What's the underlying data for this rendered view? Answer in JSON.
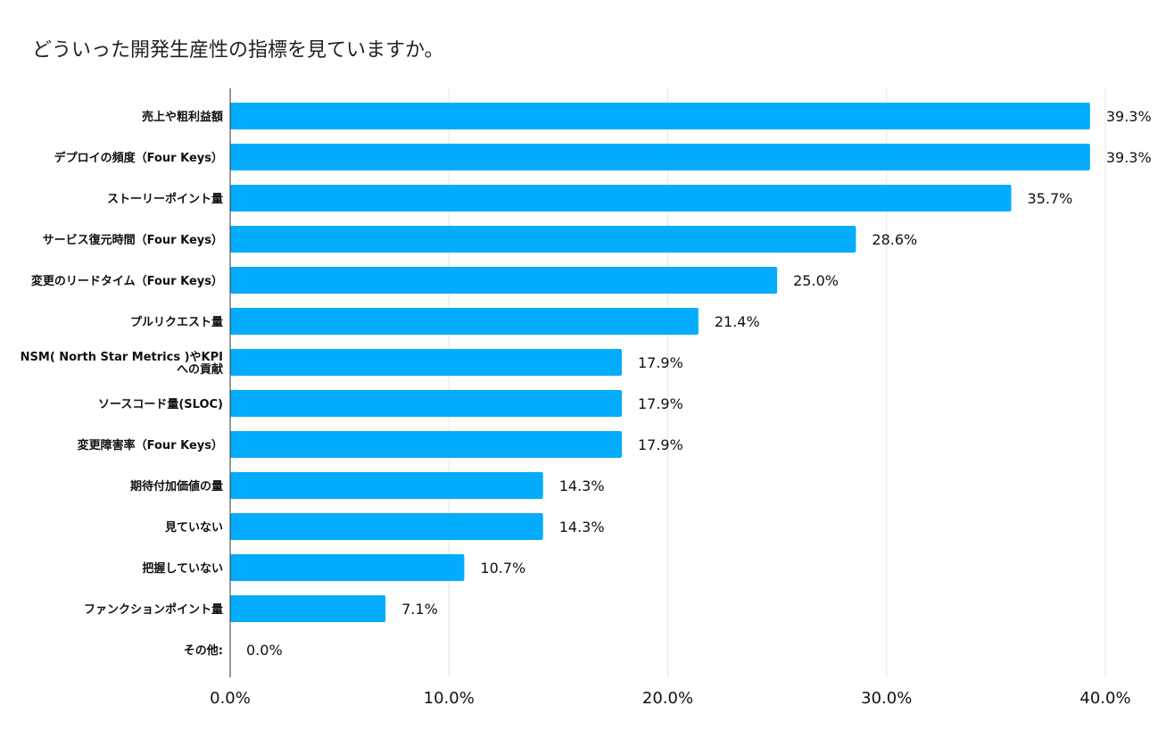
{
  "chart_data": {
    "type": "bar",
    "orientation": "horizontal",
    "title": "どういった開発生産性の指標を見ていますか。",
    "xlabel": "",
    "ylabel": "",
    "xlim": [
      0,
      40
    ],
    "ticks": [
      0,
      10,
      20,
      30,
      40
    ],
    "tick_labels": [
      "0.0%",
      "10.0%",
      "20.0%",
      "30.0%",
      "40.0%"
    ],
    "grid": true,
    "bar_color": "#03acfc",
    "categories": [
      [
        "売上や粗利益額"
      ],
      [
        "デプロイの頻度（Four Keys）"
      ],
      [
        "ストーリーポイント量"
      ],
      [
        "サービス復元時間（Four Keys）"
      ],
      [
        "変更のリードタイム（Four Keys）"
      ],
      [
        "プルリクエスト量"
      ],
      [
        "NSM( North Star Metrics )やKPI",
        "への貢献"
      ],
      [
        "ソースコード量(SLOC)"
      ],
      [
        "変更障害率（Four Keys）"
      ],
      [
        "期待付加価値の量"
      ],
      [
        "見ていない"
      ],
      [
        "把握していない"
      ],
      [
        "ファンクションポイント量"
      ],
      [
        "その他:"
      ]
    ],
    "values": [
      39.3,
      39.3,
      35.7,
      28.6,
      25.0,
      21.4,
      17.9,
      17.9,
      17.9,
      14.3,
      14.3,
      10.7,
      7.1,
      0.0
    ],
    "value_labels": [
      "39.3%",
      "39.3%",
      "35.7%",
      "28.6%",
      "25.0%",
      "21.4%",
      "17.9%",
      "17.9%",
      "17.9%",
      "14.3%",
      "14.3%",
      "10.7%",
      "7.1%",
      "0.0%"
    ]
  }
}
